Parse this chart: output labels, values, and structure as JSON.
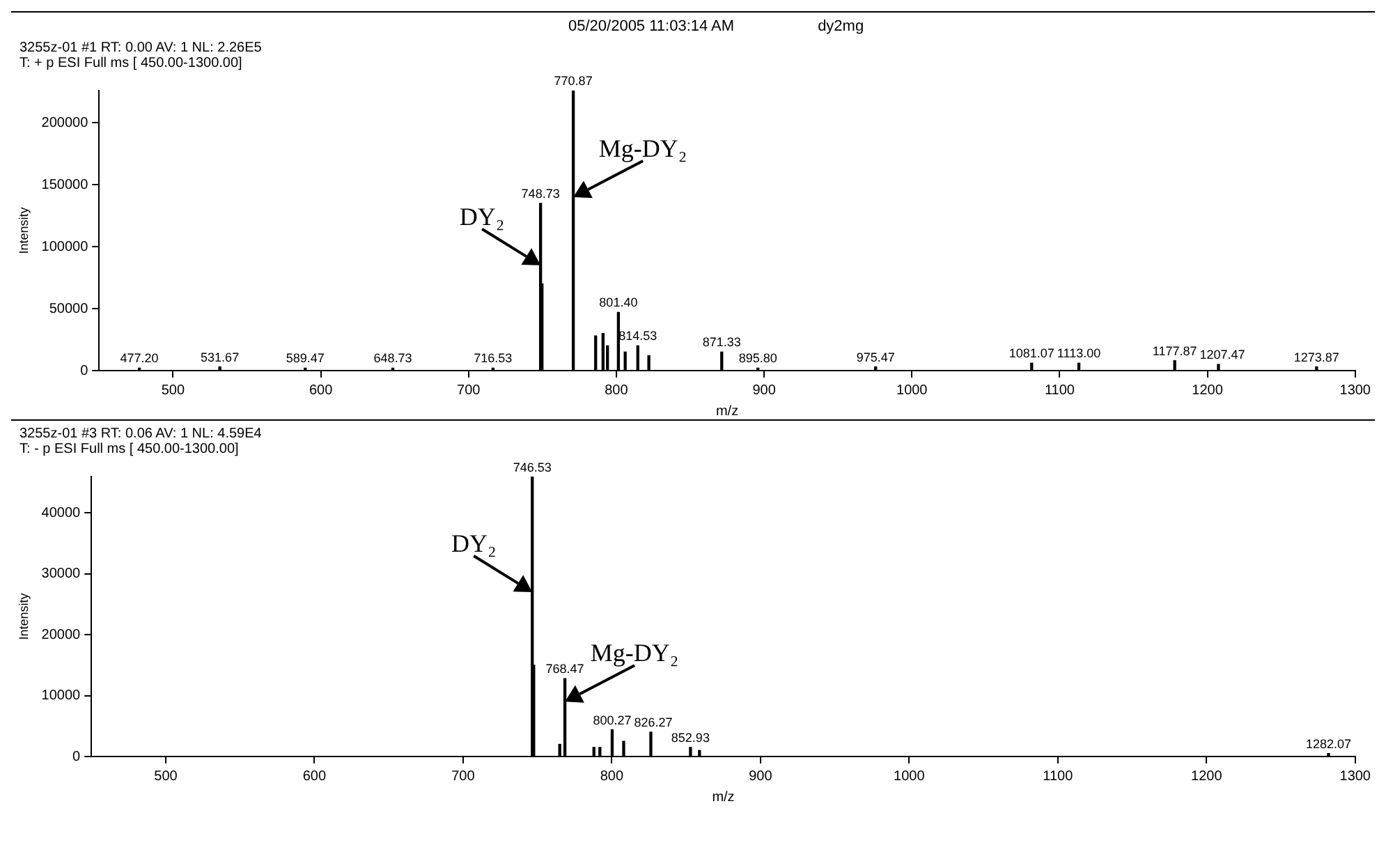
{
  "chart_data": [
    {
      "type": "bar",
      "title": "3255z-01 #1  RT: 0.00  AV: 1  NL: 2.26E5",
      "subtitle": "T: + p ESI Full ms [ 450.00-1300.00]",
      "xlabel": "m/z",
      "ylabel": "Intensity",
      "annotations": [
        "05/20/2005 11:03:14 AM",
        "dy2mg",
        {
          "text": "DY₂",
          "x": 748.73,
          "y": 85000
        },
        {
          "text": "Mg-DY₂",
          "x": 770.87,
          "y": 140000
        },
        {
          "text": "477.20",
          "x": 477.2,
          "y": 2000
        },
        {
          "text": "531.67",
          "x": 531.67,
          "y": 3000
        },
        {
          "text": "589.47",
          "x": 589.47,
          "y": 2000
        },
        {
          "text": "648.73",
          "x": 648.73,
          "y": 2000
        },
        {
          "text": "716.53",
          "x": 716.53,
          "y": 2000
        },
        {
          "text": "748.73",
          "x": 748.73,
          "y": 135000
        },
        {
          "text": "770.87",
          "x": 770.87,
          "y": 226000
        },
        {
          "text": "801.40",
          "x": 801.4,
          "y": 47000
        },
        {
          "text": "814.53",
          "x": 814.53,
          "y": 20000
        },
        {
          "text": "871.33",
          "x": 871.33,
          "y": 15000
        },
        {
          "text": "895.80",
          "x": 895.8,
          "y": 2000
        },
        {
          "text": "975.47",
          "x": 975.47,
          "y": 3000
        },
        {
          "text": "1081.07",
          "x": 1081.07,
          "y": 6000
        },
        {
          "text": "1113.00",
          "x": 1113,
          "y": 6000
        },
        {
          "text": "1177.87",
          "x": 1177.87,
          "y": 8000
        },
        {
          "text": "1207.47",
          "x": 1207.47,
          "y": 5000
        },
        {
          "text": "1273.87",
          "x": 1273.87,
          "y": 3000
        }
      ],
      "x": [
        477.2,
        531.67,
        589.47,
        648.73,
        716.53,
        748.73,
        749.7,
        770.87,
        786,
        791,
        794,
        801.4,
        806,
        814.53,
        822,
        871.33,
        895.8,
        975.47,
        1081.07,
        1113,
        1177.87,
        1207.47,
        1273.87
      ],
      "values": [
        2000,
        3000,
        2000,
        2000,
        2000,
        135000,
        70000,
        226000,
        28000,
        30000,
        20000,
        47000,
        15000,
        20000,
        12000,
        15000,
        2000,
        3000,
        6000,
        6000,
        8000,
        5000,
        3000
      ],
      "color": "#000000",
      "xlim": [
        450,
        1300
      ],
      "xticks": [
        500,
        600,
        700,
        800,
        900,
        1000,
        1100,
        1200,
        1300
      ],
      "ylim": [
        0,
        226000
      ],
      "yticks": [
        0,
        50000,
        100000,
        150000,
        200000
      ]
    },
    {
      "type": "bar",
      "title": "3255z-01 #3  RT: 0.06  AV: 1  NL: 4.59E4",
      "subtitle": "T: - p ESI Full ms [ 450.00-1300.00]",
      "xlabel": "m/z",
      "ylabel": "Intensity",
      "annotations": [
        {
          "text": "DY₂",
          "x": 746.53,
          "y": 27000
        },
        {
          "text": "Mg-DY₂",
          "x": 768.47,
          "y": 9000
        },
        {
          "text": "746.53",
          "x": 746.53,
          "y": 45900
        },
        {
          "text": "768.47",
          "x": 768.47,
          "y": 12800
        },
        {
          "text": "800.27",
          "x": 800.27,
          "y": 4400
        },
        {
          "text": "826.27",
          "x": 826.27,
          "y": 4000
        },
        {
          "text": "852.93",
          "x": 852.93,
          "y": 1500
        },
        {
          "text": "1282.07",
          "x": 1282.07,
          "y": 500
        }
      ],
      "x": [
        746.53,
        747.5,
        765,
        768.47,
        788,
        792,
        800.27,
        808,
        826.27,
        852.93,
        859,
        1282.07
      ],
      "values": [
        45900,
        15000,
        2000,
        12800,
        1500,
        1500,
        4400,
        2500,
        4000,
        1500,
        1000,
        500
      ],
      "color": "#000000",
      "xlim": [
        450,
        1300
      ],
      "xticks": [
        500,
        600,
        700,
        800,
        900,
        1000,
        1100,
        1200,
        1300
      ],
      "ylim": [
        0,
        46000
      ],
      "yticks": [
        0,
        10000,
        20000,
        30000,
        40000
      ]
    }
  ]
}
